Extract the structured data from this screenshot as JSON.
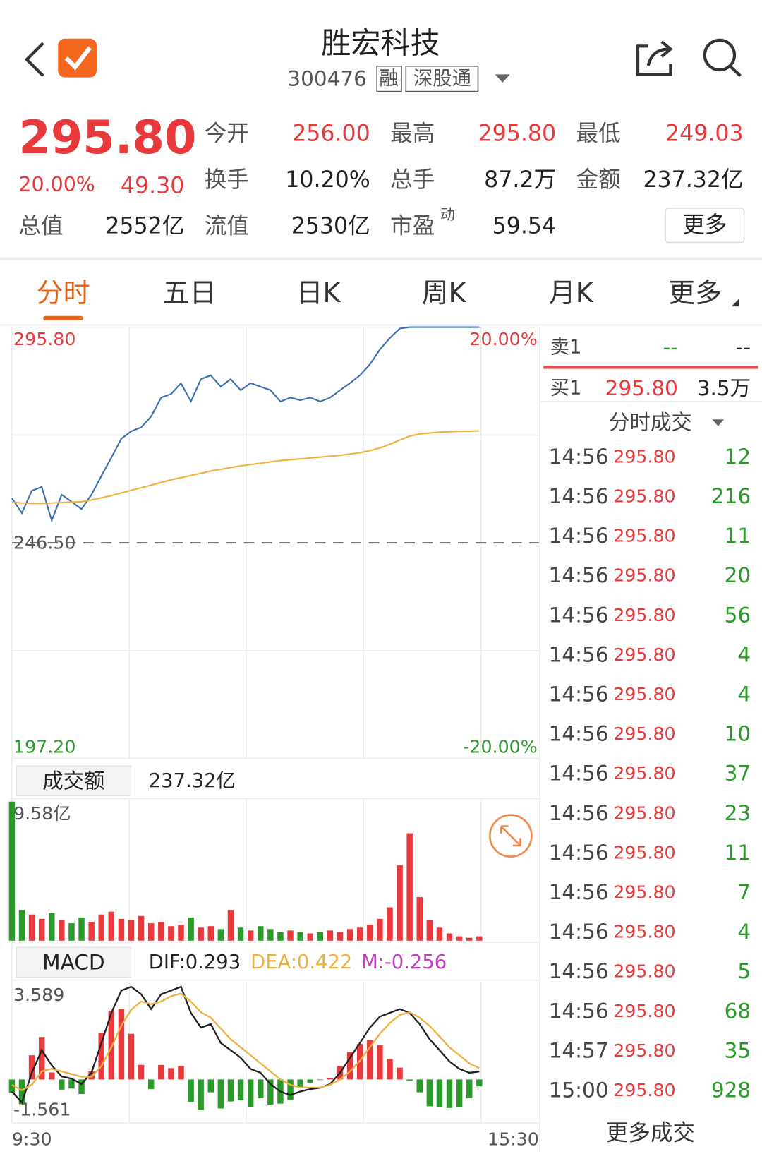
{
  "header": {
    "title": "胜宏科技",
    "code": "300476",
    "tags": [
      "融",
      "深股通"
    ]
  },
  "quote": {
    "price": "295.80",
    "change_pct": "20.00%",
    "change": "49.30",
    "stats": [
      {
        "label": "今开",
        "value": "256.00"
      },
      {
        "label": "最高",
        "value": "295.80"
      },
      {
        "label": "最低",
        "value": "249.03"
      },
      {
        "label": "换手",
        "value": "10.20%"
      },
      {
        "label": "总手",
        "value": "87.2万"
      },
      {
        "label": "金额",
        "value": "237.32亿"
      },
      {
        "label": "总值",
        "value": "2552亿"
      },
      {
        "label": "流值",
        "value": "2530亿"
      },
      {
        "label": "市盈",
        "sup": "动",
        "value": "59.54"
      }
    ],
    "more_button": "更多"
  },
  "tabs": {
    "items": [
      "分时",
      "五日",
      "日K",
      "周K",
      "月K",
      "更多"
    ],
    "active": 0
  },
  "order_book": {
    "sell": {
      "label": "卖1",
      "price": "--",
      "volume": "--"
    },
    "buy": {
      "label": "买1",
      "price": "295.80",
      "volume": "3.5万"
    }
  },
  "trades": {
    "title": "分时成交",
    "rows": [
      [
        "14:56",
        "295.80",
        "12"
      ],
      [
        "14:56",
        "295.80",
        "216"
      ],
      [
        "14:56",
        "295.80",
        "11"
      ],
      [
        "14:56",
        "295.80",
        "20"
      ],
      [
        "14:56",
        "295.80",
        "56"
      ],
      [
        "14:56",
        "295.80",
        "4"
      ],
      [
        "14:56",
        "295.80",
        "4"
      ],
      [
        "14:56",
        "295.80",
        "10"
      ],
      [
        "14:56",
        "295.80",
        "37"
      ],
      [
        "14:56",
        "295.80",
        "23"
      ],
      [
        "14:56",
        "295.80",
        "11"
      ],
      [
        "14:56",
        "295.80",
        "7"
      ],
      [
        "14:56",
        "295.80",
        "4"
      ],
      [
        "14:56",
        "295.80",
        "5"
      ],
      [
        "14:56",
        "295.80",
        "68"
      ],
      [
        "14:57",
        "295.80",
        "35"
      ],
      [
        "15:00",
        "295.80",
        "928"
      ]
    ],
    "more": "更多成交"
  },
  "chart_data": [
    {
      "type": "line",
      "series": [
        {
          "color": "#3a6fb0",
          "values": [
            256.7,
            253.3,
            258.4,
            259.3,
            251.6,
            257.5,
            255.9,
            254.2,
            257.5,
            261.8,
            266.0,
            270.3,
            272.0,
            272.9,
            275.4,
            279.7,
            280.5,
            283.0,
            278.8,
            283.9,
            284.8,
            282.2,
            283.9,
            281.4,
            283.0,
            282.2,
            281.4,
            278.8,
            279.7,
            279.1,
            279.7,
            278.8,
            279.7,
            281.4,
            283.0,
            284.8,
            287.3,
            290.7,
            293.3,
            295.5,
            295.8,
            295.8,
            295.8,
            295.8,
            295.8,
            295.8,
            295.8,
            295.8
          ]
        },
        {
          "color": "#f0b040",
          "values": [
            255.8,
            255.6,
            255.5,
            255.5,
            255.6,
            255.7,
            255.8,
            255.9,
            256.3,
            256.8,
            257.3,
            257.9,
            258.5,
            259.1,
            259.7,
            260.3,
            260.9,
            261.4,
            261.9,
            262.4,
            262.9,
            263.3,
            263.7,
            264.1,
            264.4,
            264.7,
            265.0,
            265.3,
            265.5,
            265.7,
            265.9,
            266.1,
            266.3,
            266.5,
            266.8,
            267.1,
            267.6,
            268.2,
            269.0,
            270.0,
            270.9,
            271.4,
            271.6,
            271.8,
            271.9,
            272.0,
            272.0,
            272.1
          ]
        }
      ],
      "xlim": [
        0,
        53
      ],
      "ylim": [
        197.2,
        295.8
      ],
      "yticks": [
        {
          "value": 295.8,
          "label": "295.80"
        },
        {
          "value": 246.5,
          "label": "246.50"
        },
        {
          "value": 197.2,
          "label": "197.20"
        }
      ],
      "y2lim": [
        -20,
        20
      ],
      "y2ticks": [
        {
          "value": 20,
          "label": "20.00%"
        },
        {
          "value": -20,
          "label": "-20.00%"
        }
      ],
      "grid": true
    },
    {
      "type": "bar",
      "title": "成交额",
      "total": "237.32亿",
      "values": [
        9.58,
        2.1,
        1.8,
        1.5,
        1.9,
        1.4,
        1.2,
        1.6,
        1.3,
        1.8,
        2.0,
        1.5,
        1.4,
        1.7,
        1.2,
        1.3,
        1.0,
        1.1,
        1.6,
        0.9,
        1.0,
        0.8,
        2.1,
        0.9,
        0.7,
        1.0,
        0.8,
        0.6,
        0.7,
        0.6,
        0.5,
        0.6,
        0.7,
        0.6,
        0.8,
        0.9,
        1.1,
        1.5,
        2.3,
        5.2,
        7.4,
        3.0,
        1.4,
        0.9,
        0.5,
        0.3,
        0.2,
        0.3
      ],
      "up_color": "#e8393c",
      "down_color": "#2a9a2a",
      "xlim": [
        0,
        53
      ],
      "ylim": [
        0,
        9.58
      ],
      "yticks": [
        {
          "value": 9.58,
          "label": "9.58亿"
        }
      ]
    },
    {
      "type": "macd",
      "title": "MACD",
      "series": [
        {
          "name": "DIF:0.293",
          "color": "#222222",
          "values": [
            -0.45,
            -0.86,
            0.25,
            1.09,
            0.53,
            0.11,
            0.03,
            -0.17,
            0.25,
            1.36,
            2.48,
            3.31,
            3.45,
            3.17,
            2.62,
            3.17,
            3.31,
            3.45,
            2.48,
            1.93,
            2.06,
            1.36,
            1.09,
            0.81,
            0.39,
            0.25,
            -0.17,
            -0.45,
            -0.58,
            -0.45,
            -0.36,
            -0.31,
            -0.17,
            0.25,
            0.81,
            1.36,
            1.93,
            2.34,
            2.48,
            2.62,
            2.48,
            2.06,
            1.5,
            1.09,
            0.67,
            0.39,
            0.25,
            0.293
          ]
        },
        {
          "name": "DEA:0.422",
          "color": "#f0b040",
          "values": [
            -0.2,
            -0.4,
            -0.2,
            0.3,
            0.4,
            0.3,
            0.2,
            0.1,
            0.1,
            0.5,
            1.2,
            2.0,
            2.6,
            2.9,
            2.8,
            2.9,
            3.1,
            3.2,
            2.9,
            2.5,
            2.3,
            1.9,
            1.5,
            1.2,
            0.9,
            0.6,
            0.3,
            0.0,
            -0.2,
            -0.3,
            -0.3,
            -0.3,
            -0.2,
            0.0,
            0.3,
            0.7,
            1.2,
            1.7,
            2.1,
            2.4,
            2.5,
            2.3,
            2.0,
            1.6,
            1.2,
            0.9,
            0.6,
            0.422
          ]
        },
        {
          "name": "M:-0.256",
          "color": "#c040c0",
          "up_color": "#e8393c",
          "down_color": "#2a9a2a",
          "values": [
            -0.5,
            -0.92,
            0.9,
            1.58,
            0.26,
            -0.38,
            -0.34,
            -0.54,
            0.3,
            1.72,
            2.56,
            2.62,
            1.7,
            0.54,
            -0.36,
            0.54,
            0.42,
            0.5,
            -0.84,
            -1.14,
            -0.48,
            -1.08,
            -0.82,
            -0.78,
            -1.02,
            -0.7,
            -0.94,
            -0.9,
            -0.76,
            -0.3,
            -0.12,
            -0.02,
            0.06,
            0.5,
            1.02,
            1.32,
            1.46,
            1.28,
            0.76,
            0.44,
            -0.04,
            -0.48,
            -1.0,
            -1.02,
            -1.06,
            -1.02,
            -0.7,
            -0.256
          ]
        }
      ],
      "xlim": [
        0,
        53
      ],
      "xticks": [
        {
          "value": 0,
          "label": "9:30"
        },
        {
          "value": 53,
          "label": "15:30"
        }
      ],
      "ylim": [
        -1.561,
        3.589
      ],
      "yticks": [
        3.589,
        -1.561
      ]
    }
  ]
}
